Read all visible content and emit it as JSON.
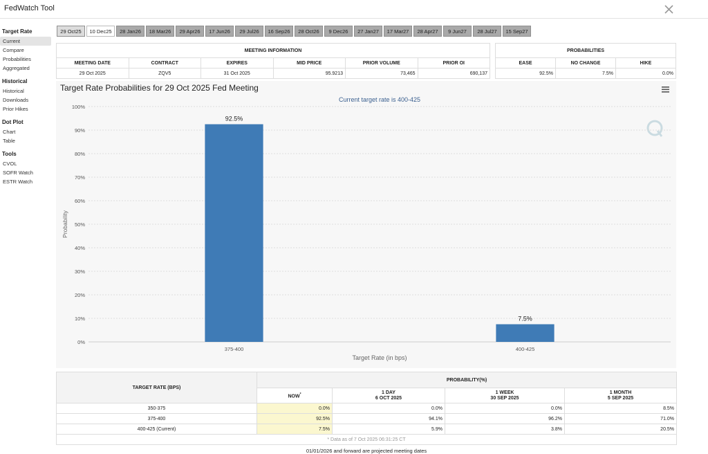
{
  "header": {
    "title": "FedWatch Tool"
  },
  "sidebar": [
    {
      "heading": "Target Rate",
      "items": [
        "Current",
        "Compare",
        "Probabilities",
        "Aggregated"
      ]
    },
    {
      "heading": "Historical",
      "items": [
        "Historical",
        "Downloads",
        "Prior Hikes"
      ]
    },
    {
      "heading": "Dot Plot",
      "items": [
        "Chart",
        "Table"
      ]
    },
    {
      "heading": "Tools",
      "items": [
        "CVOL",
        "SOFR Watch",
        "ESTR Watch"
      ]
    }
  ],
  "tabs": [
    "29 Oct25",
    "10 Dec25",
    "28 Jan26",
    "18 Mar26",
    "29 Apr26",
    "17 Jun26",
    "29 Jul26",
    "16 Sep26",
    "28 Oct26",
    "9 Dec26",
    "27 Jan27",
    "17 Mar27",
    "28 Apr27",
    "9 Jun27",
    "28 Jul27",
    "15 Sep27"
  ],
  "meeting_info": {
    "title": "MEETING INFORMATION",
    "columns": [
      "MEETING DATE",
      "CONTRACT",
      "EXPIRES",
      "MID PRICE",
      "PRIOR VOLUME",
      "PRIOR OI"
    ],
    "row": [
      "29 Oct 2025",
      "ZQV5",
      "31 Oct 2025",
      "95.9213",
      "73,465",
      "690,137"
    ]
  },
  "probabilities": {
    "title": "PROBABILITIES",
    "columns": [
      "EASE",
      "NO CHANGE",
      "HIKE"
    ],
    "row": [
      "92.5%",
      "7.5%",
      "0.0%"
    ]
  },
  "chart_data": {
    "type": "bar",
    "title": "Target Rate Probabilities for 29 Oct 2025 Fed Meeting",
    "subtitle": "Current target rate is 400-425",
    "x_label": "Target Rate (in bps)",
    "y_label": "Probability",
    "categories": [
      "375-400",
      "400-425"
    ],
    "values": [
      92.5,
      7.5
    ],
    "value_labels": [
      "92.5%",
      "7.5%"
    ],
    "color": "#3f7bb6",
    "grid": true,
    "ylim": [
      0,
      100
    ],
    "yticks": [
      {
        "value": 0,
        "label": "0%"
      },
      {
        "value": 10,
        "label": "10%"
      },
      {
        "value": 20,
        "label": "20%"
      },
      {
        "value": 30,
        "label": "30%"
      },
      {
        "value": 40,
        "label": "40%"
      },
      {
        "value": 50,
        "label": "50%"
      },
      {
        "value": 60,
        "label": "60%"
      },
      {
        "value": 70,
        "label": "70%"
      },
      {
        "value": 80,
        "label": "80%"
      },
      {
        "value": 90,
        "label": "90%"
      },
      {
        "value": 100,
        "label": "100%"
      }
    ]
  },
  "probability_table": {
    "row_header": "TARGET RATE (BPS)",
    "group_header": "PROBABILITY(%)",
    "columns": [
      {
        "label": "NOW",
        "note": "*"
      },
      {
        "label": "1 DAY",
        "date": "6 OCT 2025"
      },
      {
        "label": "1 WEEK",
        "date": "30 SEP 2025"
      },
      {
        "label": "1 MONTH",
        "date": "5 SEP 2025"
      }
    ],
    "rows": [
      [
        "350-375",
        "0.0%",
        "0.0%",
        "0.0%",
        "8.5%"
      ],
      [
        "375-400",
        "92.5%",
        "94.1%",
        "96.2%",
        "71.0%"
      ],
      [
        "400-425 (Current)",
        "7.5%",
        "5.9%",
        "3.8%",
        "20.5%"
      ]
    ],
    "footnote": "* Data as of 7 Oct 2025 06:31:25 CT"
  },
  "footer": "01/01/2026 and forward are projected meeting dates"
}
